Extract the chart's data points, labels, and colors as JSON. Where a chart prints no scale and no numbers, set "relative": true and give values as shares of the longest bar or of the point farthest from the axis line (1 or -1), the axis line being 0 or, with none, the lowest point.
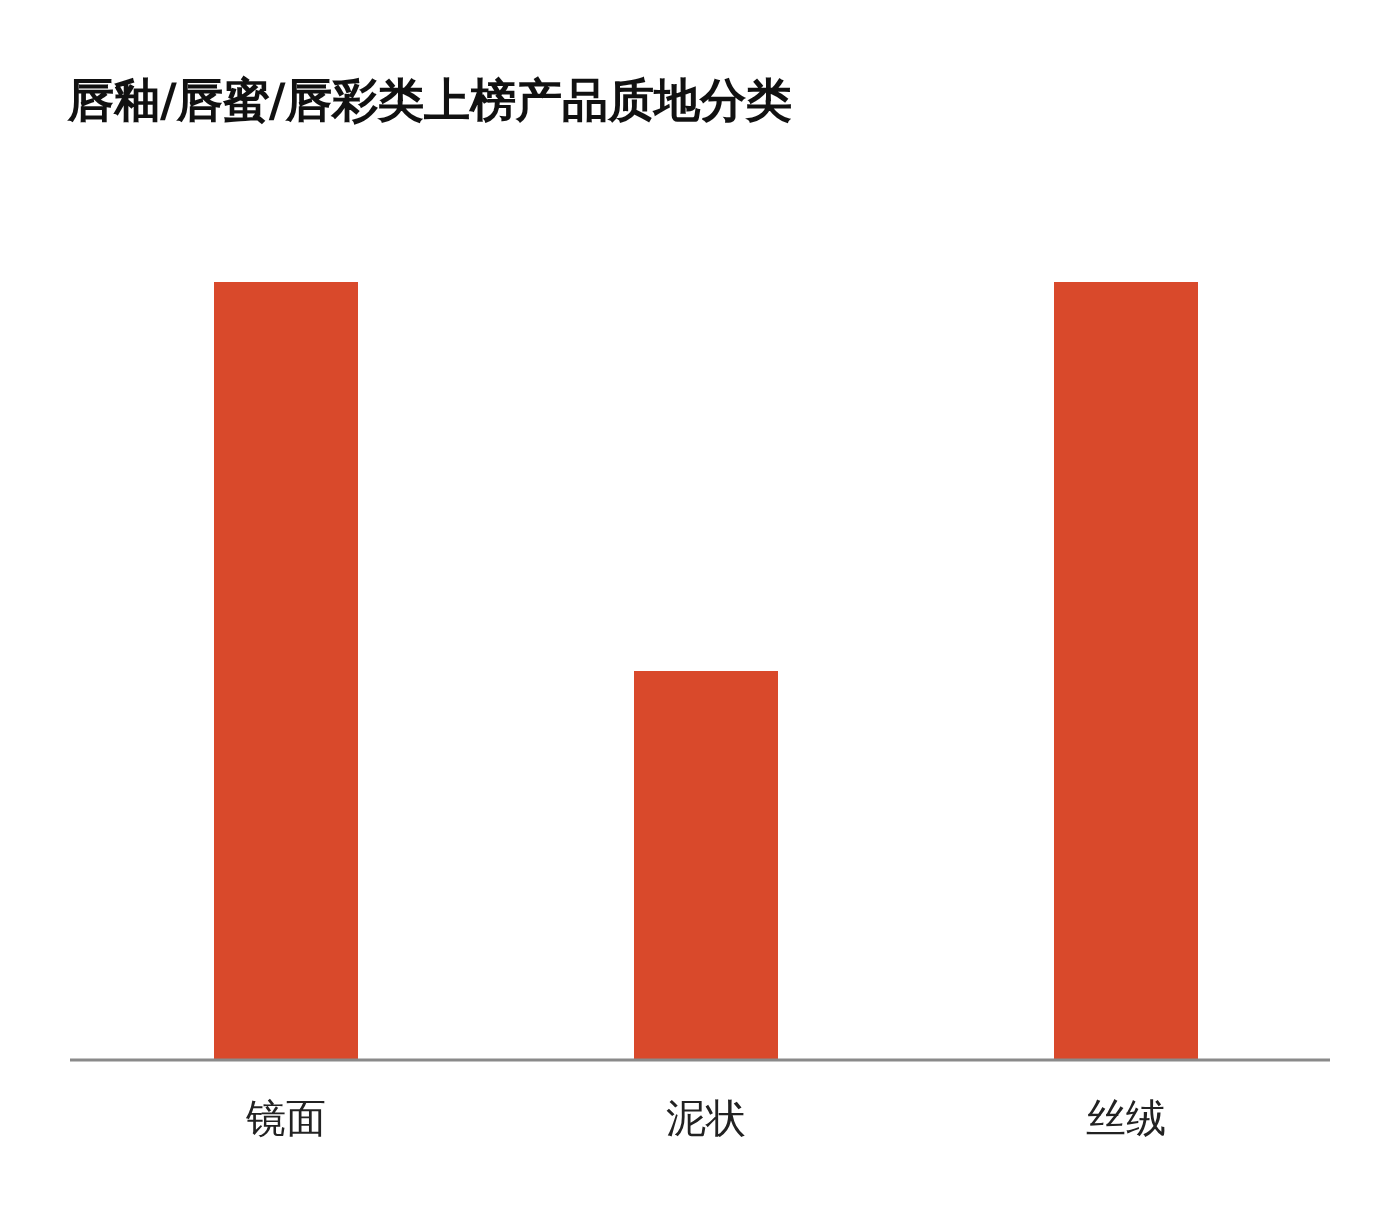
{
  "chart_data": {
    "type": "bar",
    "title": "唇釉/唇蜜/唇彩类上榜产品质地分类",
    "categories": [
      "镜面",
      "泥状",
      "丝绒"
    ],
    "values": [
      1,
      0.5,
      1
    ],
    "color": "#d9492b",
    "relative": true
  }
}
